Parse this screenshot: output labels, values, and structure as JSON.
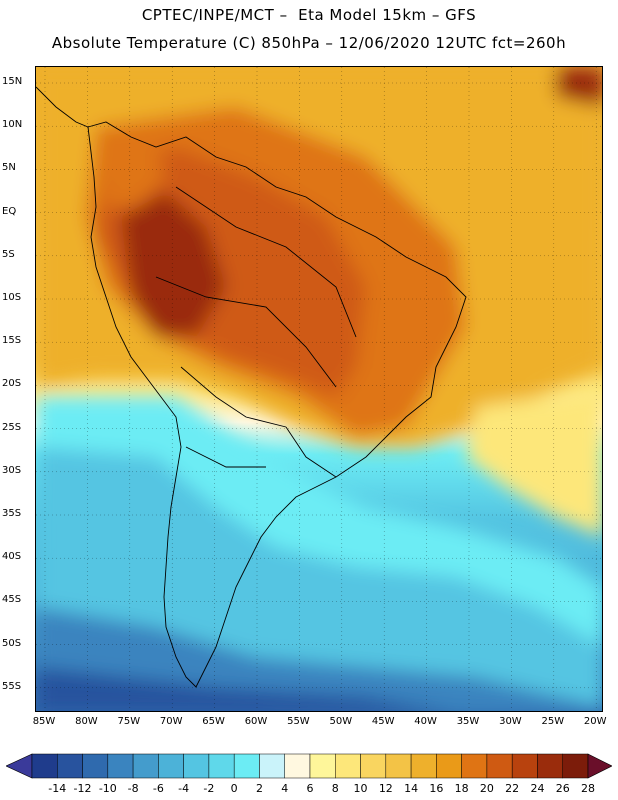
{
  "title_line1": "CPTEC/INPE/MCT –  Eta Model 15km – GFS",
  "title_line2": "Absolute Temperature (C) 850hPa – 12/06/2020 12UTC fct=260h",
  "lat_labels": [
    "15N",
    "10N",
    "5N",
    "EQ",
    "5S",
    "10S",
    "15S",
    "20S",
    "25S",
    "30S",
    "35S",
    "40S",
    "45S",
    "50S",
    "55S"
  ],
  "lon_labels": [
    "85W",
    "80W",
    "75W",
    "70W",
    "65W",
    "60W",
    "55W",
    "50W",
    "45W",
    "40W",
    "35W",
    "30W",
    "25W",
    "20W"
  ],
  "colorbar": {
    "labels": [
      "-14",
      "-12",
      "-10",
      "-8",
      "-6",
      "-4",
      "-2",
      "0",
      "2",
      "4",
      "6",
      "8",
      "10",
      "12",
      "14",
      "16",
      "18",
      "20",
      "22",
      "24",
      "26",
      "28"
    ],
    "colors": [
      "#1f3c8c",
      "#28539e",
      "#2f6aae",
      "#3a84bf",
      "#449ccc",
      "#4cb2d8",
      "#54c5e2",
      "#5fd8ea",
      "#6cecf4",
      "#caf3fa",
      "#fff8e0",
      "#fef69a",
      "#fde77a",
      "#f9d560",
      "#f3c346",
      "#eeb02c",
      "#ea9a18",
      "#df7414",
      "#cf5a12",
      "#b8420e",
      "#9a2c0c",
      "#7c1c0a"
    ],
    "low_color": "#3a3a9a",
    "high_color": "#6a0f2a"
  }
}
